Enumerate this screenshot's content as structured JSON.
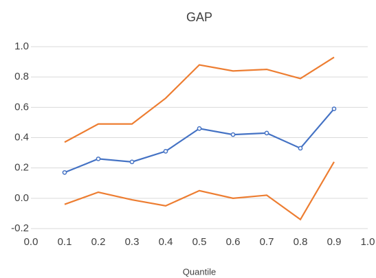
{
  "chart_data": {
    "type": "line",
    "title": "GAP",
    "x_label": "Quantile",
    "x": [
      0.1,
      0.2,
      0.3,
      0.4,
      0.5,
      0.6,
      0.7,
      0.8,
      0.9
    ],
    "series": [
      {
        "color": "#ed7d31",
        "markers": false,
        "values": [
          0.37,
          0.49,
          0.49,
          0.66,
          0.88,
          0.84,
          0.85,
          0.79,
          0.93
        ]
      },
      {
        "color": "#4472c4",
        "markers": true,
        "values": [
          0.17,
          0.26,
          0.24,
          0.31,
          0.46,
          0.42,
          0.43,
          0.33,
          0.59
        ]
      },
      {
        "color": "#ed7d31",
        "markers": false,
        "values": [
          -0.04,
          0.04,
          -0.01,
          -0.05,
          0.05,
          0.0,
          0.02,
          -0.14,
          0.24
        ]
      }
    ],
    "xlim": [
      0,
      1
    ],
    "xticks": [
      {
        "value": 0,
        "label": "0.0"
      },
      0.1,
      0.2,
      0.3,
      0.4,
      0.5,
      0.6,
      0.7,
      0.8,
      0.9,
      {
        "value": 1,
        "label": "1.0"
      }
    ],
    "ylim": [
      -0.2,
      1
    ],
    "yticks": [
      -0.2,
      {
        "value": 0,
        "label": "0.0"
      },
      0.2,
      0.4,
      0.6,
      0.8,
      {
        "value": 1,
        "label": "1.0"
      }
    ],
    "grid": true
  }
}
